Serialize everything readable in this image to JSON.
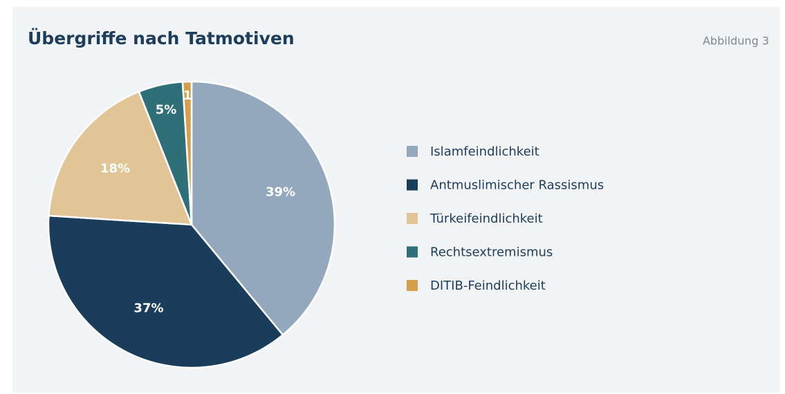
{
  "chart_data": {
    "type": "pie",
    "title": "Übergriffe nach Tatmotiven",
    "subtitle": "Abbildung 3",
    "categories": [
      "Islamfeindlichkeit",
      "Antmuslimischer Rassismus",
      "Türkeifeindlichkeit",
      "Rechtsextremismus",
      "DITIB-Feindlichkeit"
    ],
    "values": [
      39,
      37,
      18,
      5,
      1
    ],
    "value_labels": [
      "39%",
      "37%",
      "18%",
      "5%",
      "1"
    ],
    "colors": [
      "#93a8bc",
      "#1b3d5c",
      "#e1c597",
      "#2f6f78",
      "#d4a04e"
    ],
    "legend": "right"
  }
}
